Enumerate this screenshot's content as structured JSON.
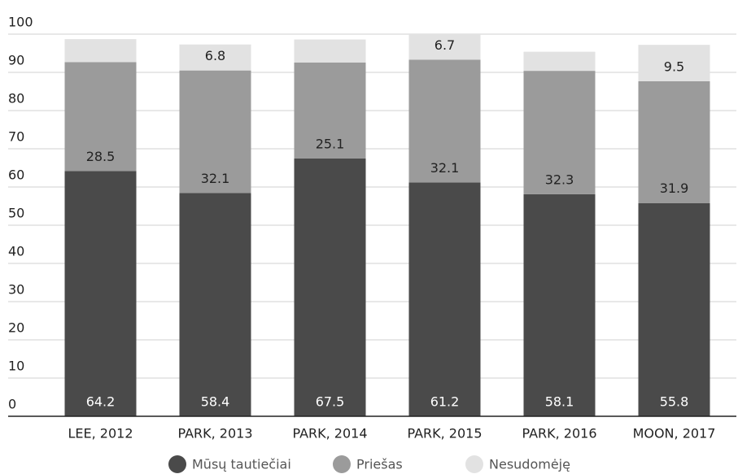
{
  "chart_data": {
    "type": "stacked_bar",
    "categories": [
      "LEE, 2012",
      "PARK, 2013",
      "PARK, 2014",
      "PARK, 2015",
      "PARK, 2016",
      "MOON, 2017"
    ],
    "series": [
      {
        "name": "Mūsų tautiečiai",
        "color": "#4a4a4a",
        "values": [
          64.2,
          58.4,
          67.5,
          61.2,
          58.1,
          55.8
        ]
      },
      {
        "name": "Priešas",
        "color": "#9b9b9b",
        "values": [
          28.5,
          32.1,
          25.1,
          32.1,
          32.3,
          31.9
        ]
      },
      {
        "name": "Nesudomėję",
        "color": "#e2e2e2",
        "values": [
          6,
          6.8,
          6,
          6.7,
          5,
          9.5
        ],
        "value_labels": [
          null,
          "6.8",
          null,
          "6.7",
          null,
          "9.5"
        ]
      }
    ],
    "ylim": [
      0,
      100
    ],
    "yticks": [
      0,
      10,
      20,
      30,
      40,
      50,
      60,
      70,
      80,
      90,
      100
    ],
    "grid": true,
    "legend": "bottom"
  }
}
